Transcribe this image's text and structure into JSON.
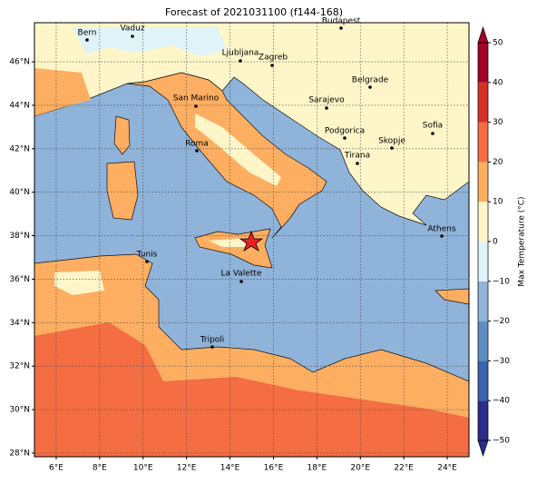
{
  "map": {
    "title": "Forecast of 2021031100 (f144-168)",
    "xlim": [
      5,
      25
    ],
    "ylim": [
      27.83,
      47.8
    ],
    "xticks": [
      {
        "value": 6,
        "label": "6°E"
      },
      {
        "value": 8,
        "label": "8°E"
      },
      {
        "value": 10,
        "label": "10°E"
      },
      {
        "value": 12,
        "label": "12°E"
      },
      {
        "value": 14,
        "label": "14°E"
      },
      {
        "value": 16,
        "label": "16°E"
      },
      {
        "value": 18,
        "label": "18°E"
      },
      {
        "value": 20,
        "label": "20°E"
      },
      {
        "value": 22,
        "label": "22°E"
      },
      {
        "value": 24,
        "label": "24°E"
      }
    ],
    "yticks": [
      {
        "value": 28,
        "label": "28°N"
      },
      {
        "value": 30,
        "label": "30°N"
      },
      {
        "value": 32,
        "label": "32°N"
      },
      {
        "value": 34,
        "label": "34°N"
      },
      {
        "value": 36,
        "label": "36°N"
      },
      {
        "value": 38,
        "label": "38°N"
      },
      {
        "value": 40,
        "label": "40°N"
      },
      {
        "value": 42,
        "label": "42°N"
      },
      {
        "value": 44,
        "label": "44°N"
      },
      {
        "value": 46,
        "label": "46°N"
      }
    ],
    "grid": true,
    "colorbar": {
      "label": "Max Temperature (°C)",
      "ticks": [
        {
          "value": -50,
          "label": "−50"
        },
        {
          "value": -40,
          "label": "−40"
        },
        {
          "value": -30,
          "label": "−30"
        },
        {
          "value": -20,
          "label": "−20"
        },
        {
          "value": -10,
          "label": "−10"
        },
        0,
        10,
        20,
        30,
        40,
        50
      ],
      "colors": [
        "#2c2c8c",
        "#3c63ad",
        "#5f8fc2",
        "#8fb3d9",
        "#e0f3f8",
        "#fef6c8",
        "#fdae61",
        "#f46d43",
        "#d73027",
        "#a50026"
      ]
    },
    "cities": [
      "Bern",
      "Vaduz",
      "Budapest",
      "Ljubljana",
      "Zagreb",
      "Belgrade",
      "Sarajevo",
      "San Marino",
      "Podgorica",
      "Sofia",
      "Skopje",
      "Roma",
      "Tirana",
      "Athens",
      "Tunis",
      "La Valette",
      "Tripoli"
    ]
  }
}
